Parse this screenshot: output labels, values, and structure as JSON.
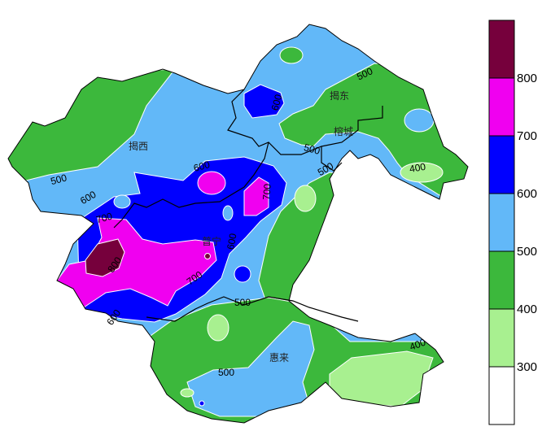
{
  "map": {
    "cities": [
      {
        "name": "揭西"
      },
      {
        "name": "揭东"
      },
      {
        "name": "榕城"
      },
      {
        "name": "普宁"
      },
      {
        "name": "惠来"
      }
    ],
    "contour_labels": [
      "500",
      "600",
      "700",
      "800",
      "700",
      "600",
      "600",
      "700",
      "600",
      "600",
      "500",
      "500",
      "500",
      "400",
      "500",
      "500",
      "400"
    ]
  },
  "colorbar": {
    "levels": [
      "800",
      "700",
      "600",
      "500",
      "400",
      "300"
    ],
    "colors": [
      "#76003c",
      "#f000f0",
      "#0000ff",
      "#62b8f8",
      "#3cb83c",
      "#a8f090",
      "#ffffff"
    ]
  }
}
